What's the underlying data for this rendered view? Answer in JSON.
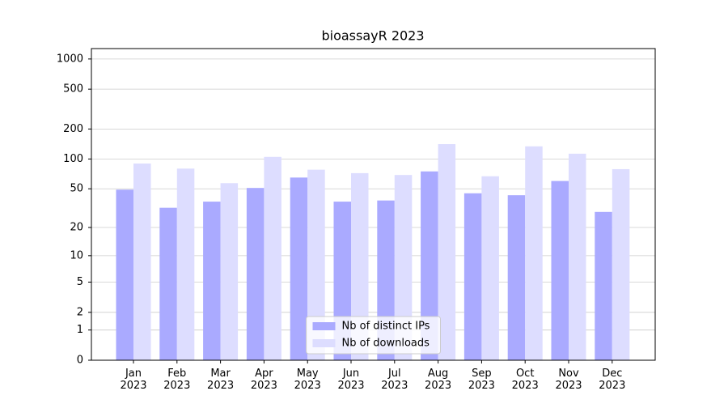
{
  "chart_data": {
    "type": "bar",
    "title": "bioassayR 2023",
    "scale": "log1p",
    "categories": [
      "Jan 2023",
      "Feb 2023",
      "Mar 2023",
      "Apr 2023",
      "May 2023",
      "Jun 2023",
      "Jul 2023",
      "Aug 2023",
      "Sep 2023",
      "Oct 2023",
      "Nov 2023",
      "Dec 2023"
    ],
    "series": [
      {
        "name": "Nb of distinct IPs",
        "color": "#aaaaff",
        "values": [
          49,
          32,
          37,
          51,
          65,
          37,
          38,
          75,
          45,
          43,
          60,
          29
        ]
      },
      {
        "name": "Nb of downloads",
        "color": "#ddddff",
        "values": [
          90,
          80,
          57,
          105,
          78,
          72,
          69,
          141,
          67,
          134,
          113,
          79
        ]
      }
    ],
    "ylim": [
      0,
      1270
    ],
    "yticks": [
      0,
      1,
      2,
      5,
      10,
      20,
      50,
      100,
      200,
      500,
      1000
    ],
    "grid": true,
    "legend": "lower center"
  }
}
